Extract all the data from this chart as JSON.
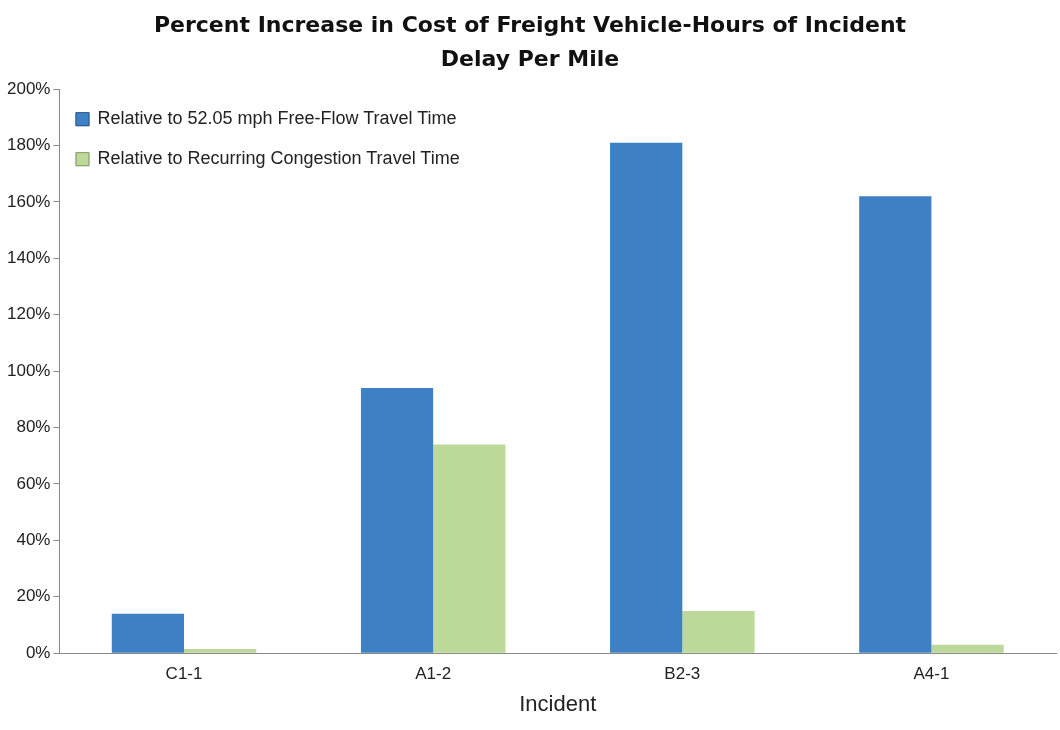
{
  "chart_data": {
    "type": "bar",
    "title": "Percent Increase in Cost of Freight Vehicle-Hours of Incident Delay Per Mile",
    "xlabel": "Incident",
    "categories": [
      "C1-1",
      "A1-2",
      "B2-3",
      "A4-1"
    ],
    "series": [
      {
        "name": "Relative to 52.05 mph Free-Flow Travel Time",
        "color": "#3d80c3",
        "values": [
          14,
          94,
          181,
          162
        ]
      },
      {
        "name": "Relative to Recurring Congestion Travel Time",
        "color": "#bcd99a",
        "values": [
          1.5,
          74,
          15,
          3
        ]
      }
    ],
    "ylim": [
      0,
      200
    ],
    "yticks": [
      {
        "value": 0,
        "label": "0%"
      },
      {
        "value": 20,
        "label": "20%"
      },
      {
        "value": 40,
        "label": "40%"
      },
      {
        "value": 60,
        "label": "60%"
      },
      {
        "value": 80,
        "label": "80%"
      },
      {
        "value": 100,
        "label": "100%"
      },
      {
        "value": 120,
        "label": "120%"
      },
      {
        "value": 140,
        "label": "140%"
      },
      {
        "value": 160,
        "label": "160%"
      },
      {
        "value": 180,
        "label": "180%"
      },
      {
        "value": 200,
        "label": "200%"
      }
    ],
    "grid": false,
    "legend": "top left"
  }
}
